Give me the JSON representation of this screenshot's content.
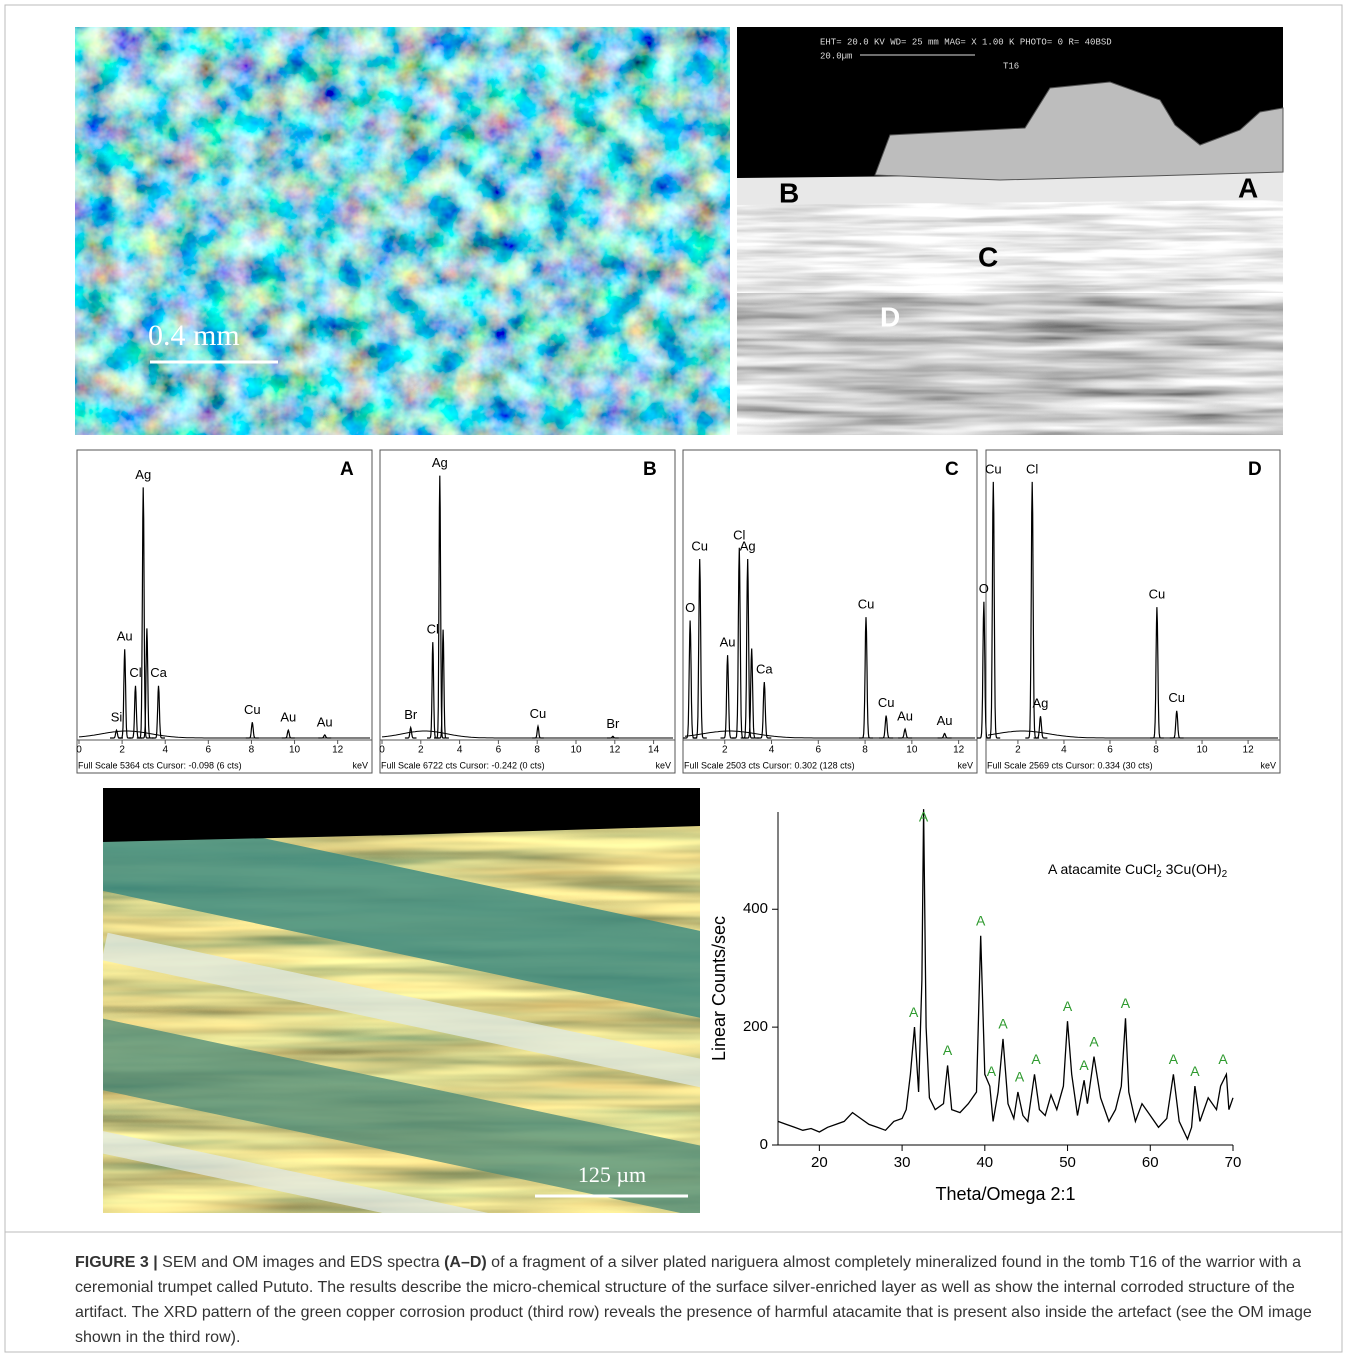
{
  "figure": {
    "images": {
      "om_surface": {
        "scale_bar": "0.4 mm"
      },
      "sem": {
        "header": "EHT= 20.0 KV   WD= 25   mm    MAG= X 1.00 K  PHOTO= 0       R= 40BSD",
        "scale": "20.0µm",
        "sample": "T16",
        "labels": [
          "A",
          "B",
          "C",
          "D"
        ]
      },
      "om_section": {
        "scale_bar": "125 µm"
      }
    },
    "caption": {
      "label": "FIGURE 3 |",
      "text1": " SEM and OM images and EDS spectra ",
      "ref": "(A–D)",
      "text2": " of a fragment of a silver plated nariguera almost completely mineralized found in the tomb T16 of the warrior with a ceremonial trumpet called Pututo. The results describe the micro-chemical structure of the surface silver-enriched layer as well as show the internal corroded structure of the artifact. The XRD pattern of the green copper corrosion product (third row) reveals the presence of harmful atacamite that is present also inside the artefact (see the OM image shown in the third row)."
    }
  },
  "chart_data": [
    {
      "type": "spectrum",
      "title": "A",
      "xlabel": "keV",
      "footer": "Full Scale 5364 cts Cursor: -0.098 (6 cts)",
      "xlim": [
        0,
        13.5
      ],
      "xticks": [
        0,
        2,
        4,
        6,
        8,
        10,
        12
      ],
      "ylim": [
        0,
        5364
      ],
      "peaks": [
        {
          "energy": 1.74,
          "counts": 150,
          "label": "Si"
        },
        {
          "energy": 2.12,
          "counts": 1700,
          "label": "Au"
        },
        {
          "energy": 2.62,
          "counts": 1000,
          "label": "Cl"
        },
        {
          "energy": 2.98,
          "counts": 4800,
          "label": "Ag"
        },
        {
          "energy": 3.15,
          "counts": 2100
        },
        {
          "energy": 3.69,
          "counts": 1000,
          "label": "Ca"
        },
        {
          "energy": 8.04,
          "counts": 300,
          "label": "Cu"
        },
        {
          "energy": 9.71,
          "counts": 150,
          "label": "Au"
        },
        {
          "energy": 11.4,
          "counts": 60,
          "label": "Au"
        }
      ]
    },
    {
      "type": "spectrum",
      "title": "B",
      "xlabel": "keV",
      "footer": "Full Scale 6722 cts Cursor: -0.242 (0 cts)",
      "xlim": [
        0,
        15
      ],
      "xticks": [
        0,
        2,
        4,
        6,
        8,
        10,
        12,
        14
      ],
      "ylim": [
        0,
        6722
      ],
      "peaks": [
        {
          "energy": 1.48,
          "counts": 250,
          "label": "Br"
        },
        {
          "energy": 2.62,
          "counts": 2300,
          "label": "Cl"
        },
        {
          "energy": 2.98,
          "counts": 6300,
          "label": "Ag"
        },
        {
          "energy": 3.15,
          "counts": 2600
        },
        {
          "energy": 8.04,
          "counts": 280,
          "label": "Cu"
        },
        {
          "energy": 11.9,
          "counts": 40,
          "label": "Br"
        }
      ]
    },
    {
      "type": "spectrum",
      "title": "C",
      "xlabel": "keV",
      "footer": "Full Scale 2503 cts Cursor: 0.302 (128 cts)",
      "xlim": [
        0.3,
        12.7
      ],
      "xticks": [
        2,
        4,
        6,
        8,
        10,
        12
      ],
      "ylim": [
        0,
        2503
      ],
      "peaks": [
        {
          "energy": 0.52,
          "counts": 1050,
          "label": "O"
        },
        {
          "energy": 0.93,
          "counts": 1600,
          "label": "Cu"
        },
        {
          "energy": 2.12,
          "counts": 740,
          "label": "Au"
        },
        {
          "energy": 2.62,
          "counts": 1700,
          "label": "Cl"
        },
        {
          "energy": 2.98,
          "counts": 1600,
          "label": "Ag"
        },
        {
          "energy": 3.15,
          "counts": 800
        },
        {
          "energy": 3.69,
          "counts": 500,
          "label": "Ca"
        },
        {
          "energy": 8.04,
          "counts": 1080,
          "label": "Cu"
        },
        {
          "energy": 8.9,
          "counts": 200,
          "label": "Cu"
        },
        {
          "energy": 9.71,
          "counts": 80,
          "label": "Au"
        },
        {
          "energy": 11.4,
          "counts": 40,
          "label": "Au"
        }
      ]
    },
    {
      "type": "spectrum",
      "title": "D",
      "xlabel": "keV",
      "footer": "Full Scale 2569 cts Cursor: 0.334 (30 cts)",
      "xlim": [
        0.7,
        13.3
      ],
      "xticks": [
        2,
        4,
        6,
        8,
        10,
        12
      ],
      "ylim": [
        0,
        2569
      ],
      "peaks": [
        {
          "energy": 0.52,
          "counts": 1250,
          "label": "O"
        },
        {
          "energy": 0.93,
          "counts": 2350,
          "label": "Cu"
        },
        {
          "energy": 2.62,
          "counts": 2350,
          "label": "Cl"
        },
        {
          "energy": 2.98,
          "counts": 200,
          "label": "Ag"
        },
        {
          "energy": 8.04,
          "counts": 1200,
          "label": "Cu"
        },
        {
          "energy": 8.9,
          "counts": 250,
          "label": "Cu"
        }
      ]
    },
    {
      "type": "line",
      "xlabel": "Theta/Omega 2:1",
      "ylabel": "Linear Counts/sec",
      "legend": [
        "A atacamite CuCl",
        "2",
        " 3Cu(OH)",
        "2"
      ],
      "color": "#000000",
      "peak_label": "A",
      "peak_color": "#2e9a2e",
      "xlim": [
        15,
        70
      ],
      "xticks": [
        20,
        30,
        40,
        50,
        60,
        70
      ],
      "ylim": [
        0,
        565
      ],
      "yticks": [
        0,
        200,
        400
      ],
      "peaks": [
        31.4,
        32.6,
        35.5,
        39.5,
        40.8,
        42.2,
        44.2,
        46.2,
        50,
        52,
        53.2,
        57,
        62.8,
        65.4,
        68.8
      ],
      "x": [
        15,
        16,
        17,
        18,
        19,
        20,
        21,
        22,
        23,
        24,
        25,
        26,
        27,
        28,
        29,
        30,
        30.5,
        31,
        31.5,
        32,
        32.4,
        32.6,
        32.9,
        33.3,
        34,
        35,
        35.5,
        36,
        37,
        38,
        39,
        39.5,
        40,
        40.6,
        41,
        41.6,
        42.2,
        42.8,
        43.5,
        44,
        44.6,
        45.2,
        46,
        46.6,
        47.3,
        48,
        48.7,
        49.5,
        50,
        50.5,
        51.2,
        52,
        52.4,
        53.2,
        54,
        55,
        55.8,
        56.5,
        57,
        57.4,
        58.2,
        59,
        60,
        61,
        62,
        62.8,
        63.5,
        64.5,
        65,
        65.4,
        66,
        67,
        68,
        68.5,
        69.2,
        69.5,
        70
      ],
      "values": [
        40,
        35,
        30,
        25,
        28,
        22,
        30,
        35,
        40,
        55,
        45,
        35,
        30,
        25,
        40,
        45,
        60,
        120,
        200,
        90,
        280,
        570,
        200,
        80,
        60,
        70,
        135,
        60,
        55,
        70,
        90,
        355,
        120,
        100,
        40,
        90,
        180,
        70,
        45,
        90,
        50,
        40,
        120,
        60,
        50,
        85,
        60,
        100,
        210,
        120,
        50,
        110,
        70,
        150,
        80,
        40,
        60,
        100,
        215,
        90,
        40,
        70,
        50,
        30,
        45,
        120,
        40,
        10,
        30,
        100,
        40,
        80,
        60,
        100,
        120,
        60,
        80
      ]
    }
  ]
}
